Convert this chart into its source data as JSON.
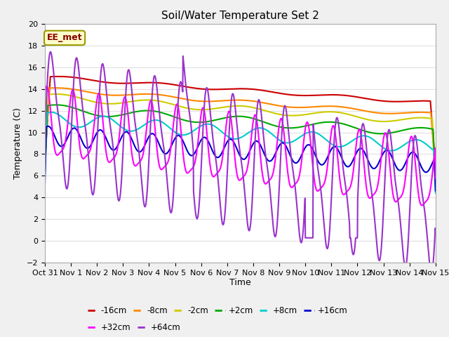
{
  "title": "Soil/Water Temperature Set 2",
  "xlabel": "Time",
  "ylabel": "Temperature (C)",
  "ylim": [
    -2,
    20
  ],
  "yticks": [
    -2,
    0,
    2,
    4,
    6,
    8,
    10,
    12,
    14,
    16,
    18,
    20
  ],
  "background_color": "#f0f0f0",
  "plot_bg_color": "#ffffff",
  "grid_color": "#e0e0e0",
  "annotation_text": "EE_met",
  "annotation_box_color": "#ffffcc",
  "annotation_border_color": "#999900",
  "series": {
    "-16cm": {
      "color": "#cc0000",
      "lw": 1.5
    },
    "-8cm": {
      "color": "#ff8800",
      "lw": 1.5
    },
    "-2cm": {
      "color": "#cccc00",
      "lw": 1.5
    },
    "+2cm": {
      "color": "#00aa00",
      "lw": 1.5
    },
    "+8cm": {
      "color": "#00cccc",
      "lw": 1.5
    },
    "+16cm": {
      "color": "#0000cc",
      "lw": 1.5
    },
    "+32cm": {
      "color": "#ff00ff",
      "lw": 1.5
    },
    "+64cm": {
      "color": "#9933cc",
      "lw": 1.5
    }
  },
  "legend_order": [
    "-16cm",
    "-8cm",
    "-2cm",
    "+2cm",
    "+8cm",
    "+16cm",
    "+32cm",
    "+64cm"
  ],
  "xtick_labels": [
    "Oct 31",
    "Nov 1",
    "Nov 2",
    "Nov 3",
    "Nov 4",
    "Nov 5",
    "Nov 6",
    "Nov 7",
    "Nov 8",
    "Nov 9",
    "Nov 10",
    "Nov 11",
    "Nov 12",
    "Nov 13",
    "Nov 14",
    "Nov 15"
  ]
}
